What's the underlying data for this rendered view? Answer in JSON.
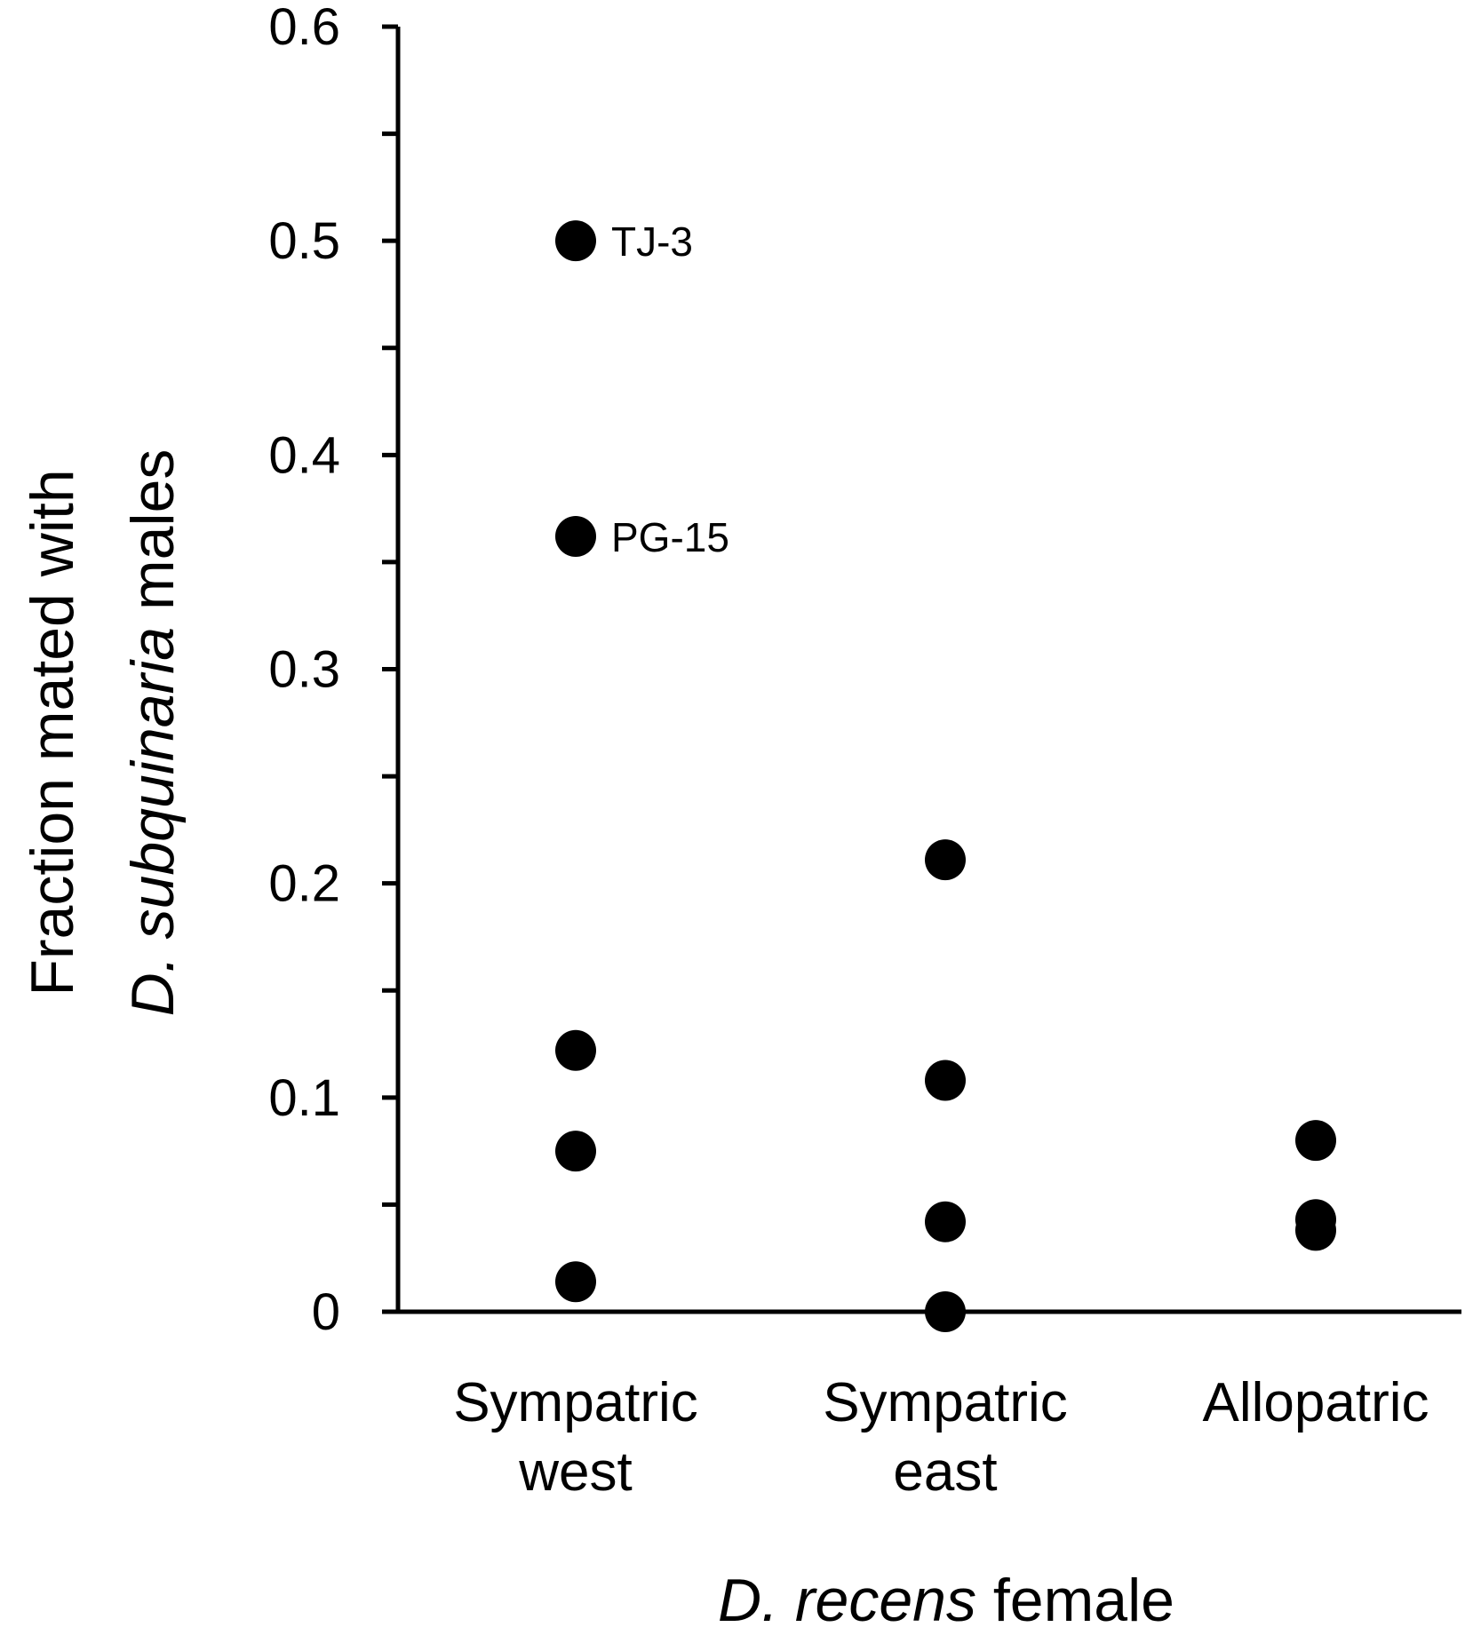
{
  "chart_data": {
    "type": "scatter",
    "categories": [
      "Sympatric\nwest",
      "Sympatric\neast",
      "Allopatric"
    ],
    "series": [
      {
        "points": [
          {
            "category": 0,
            "value": 0.5,
            "label": "TJ-3"
          },
          {
            "category": 0,
            "value": 0.362,
            "label": "PG-15"
          },
          {
            "category": 0,
            "value": 0.122
          },
          {
            "category": 0,
            "value": 0.075
          },
          {
            "category": 0,
            "value": 0.014
          },
          {
            "category": 1,
            "value": 0.211
          },
          {
            "category": 1,
            "value": 0.108
          },
          {
            "category": 1,
            "value": 0.042
          },
          {
            "category": 1,
            "value": 0.0
          },
          {
            "category": 2,
            "value": 0.08
          },
          {
            "category": 2,
            "value": 0.043
          },
          {
            "category": 2,
            "value": 0.038
          }
        ]
      }
    ],
    "ylim": [
      0,
      0.6
    ],
    "yticks": [
      "0",
      "0.1",
      "0.2",
      "0.3",
      "0.4",
      "0.5",
      "0.6"
    ],
    "ylabel_line1": "Fraction mated with",
    "ylabel_line2_italic": "D. subquinaria",
    "ylabel_line2_rest": " males",
    "xlabel_italic": "D. recens",
    "xlabel_rest": " female",
    "grid": false,
    "legend": "none"
  },
  "colors": {
    "marker": "#000000",
    "axis": "#000000"
  }
}
